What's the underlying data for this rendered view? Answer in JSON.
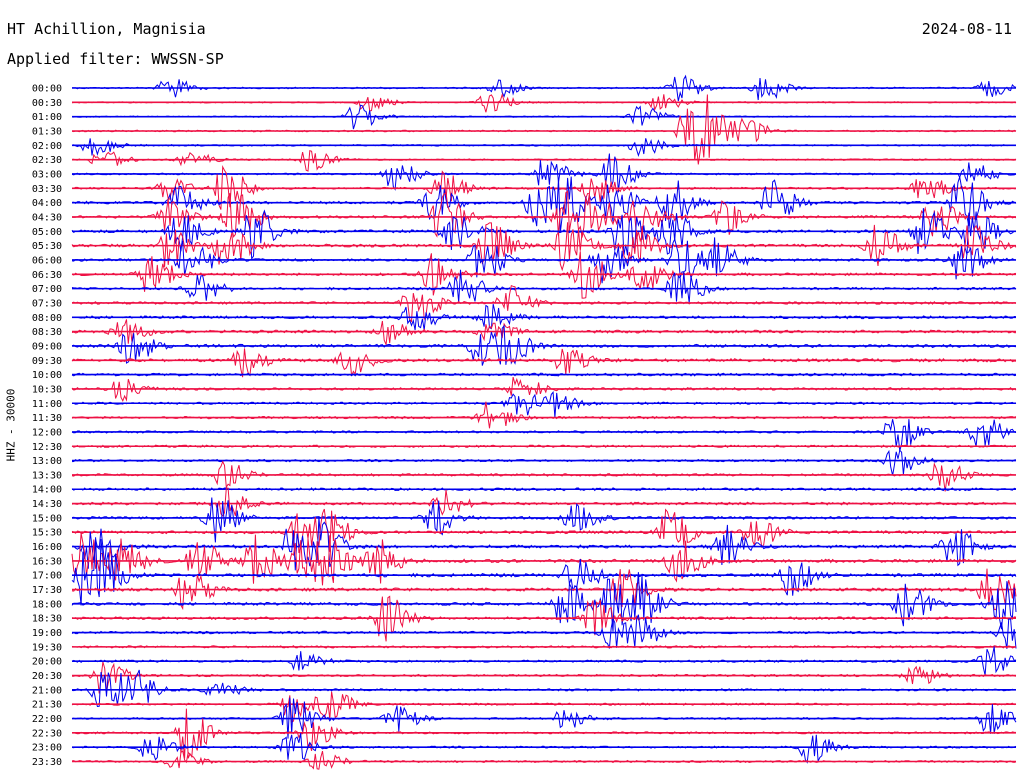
{
  "header": {
    "station": "HT Achillion, Magnisia",
    "date": "2024-08-11",
    "filter": "Applied filter: WWSSN-SP"
  },
  "chart_data": {
    "type": "line",
    "title": "HT Achillion, Magnisia",
    "date": "2024-08-11",
    "filter": "Applied filter: WWSSN-SP",
    "ylabel": "HHZ - 30000",
    "row_labels": [
      "00:00",
      "00:30",
      "01:00",
      "01:30",
      "02:00",
      "02:30",
      "03:00",
      "03:30",
      "04:00",
      "04:30",
      "05:00",
      "05:30",
      "06:00",
      "06:30",
      "07:00",
      "07:30",
      "08:00",
      "08:30",
      "09:00",
      "09:30",
      "10:00",
      "10:30",
      "11:00",
      "11:30",
      "12:00",
      "12:30",
      "13:00",
      "13:30",
      "14:00",
      "14:30",
      "15:00",
      "15:30",
      "16:00",
      "16:30",
      "17:00",
      "17:30",
      "18:00",
      "18:30",
      "19:00",
      "19:30",
      "20:00",
      "20:30",
      "21:00",
      "21:30",
      "22:00",
      "22:30",
      "23:00",
      "23:30"
    ],
    "row_minutes": 30,
    "trace_colors": [
      "#0000ee",
      "#ee1144"
    ],
    "baseline_noise": [
      0.35,
      0.3,
      0.3,
      0.35,
      0.35,
      0.35,
      0.4,
      0.45,
      0.6,
      0.6,
      0.65,
      0.65,
      0.6,
      0.6,
      0.55,
      0.55,
      0.6,
      0.65,
      0.7,
      0.7,
      0.6,
      0.55,
      0.5,
      0.5,
      0.5,
      0.5,
      0.5,
      0.55,
      0.6,
      0.6,
      0.6,
      0.65,
      0.7,
      0.75,
      0.75,
      0.7,
      0.65,
      0.6,
      0.55,
      0.5,
      0.5,
      0.5,
      0.5,
      0.45,
      0.45,
      0.45,
      0.45,
      0.45
    ],
    "events": [
      {
        "row": 0,
        "x": [
          0.1,
          0.45,
          0.64,
          0.73,
          0.97
        ],
        "amp": [
          1.0,
          0.8,
          1.2,
          1.2,
          0.8
        ]
      },
      {
        "row": 1,
        "x": [
          0.31,
          0.44,
          0.62
        ],
        "amp": [
          0.8,
          1.0,
          0.8
        ]
      },
      {
        "row": 2,
        "x": [
          0.3,
          0.6
        ],
        "amp": [
          1.2,
          1.0
        ]
      },
      {
        "row": 3,
        "x": [
          0.65,
          0.67,
          0.71
        ],
        "amp": [
          2.5,
          2.2,
          1.2
        ]
      },
      {
        "row": 4,
        "x": [
          0.02,
          0.6
        ],
        "amp": [
          1.0,
          1.0
        ]
      },
      {
        "row": 5,
        "x": [
          0.03,
          0.12,
          0.25
        ],
        "amp": [
          0.9,
          0.9,
          1.0
        ]
      },
      {
        "row": 6,
        "x": [
          0.34,
          0.5,
          0.57,
          0.95
        ],
        "amp": [
          1.5,
          1.6,
          1.8,
          1.3
        ]
      },
      {
        "row": 7,
        "x": [
          0.1,
          0.16,
          0.39,
          0.55,
          0.9
        ],
        "amp": [
          1.0,
          2.2,
          1.8,
          1.4,
          1.5
        ]
      },
      {
        "row": 8,
        "x": [
          0.11,
          0.38,
          0.49,
          0.52,
          0.57,
          0.63,
          0.74,
          0.94
        ],
        "amp": [
          1.5,
          1.8,
          2.2,
          2.5,
          2.0,
          2.5,
          2.0,
          2.5
        ]
      },
      {
        "row": 9,
        "x": [
          0.1,
          0.17,
          0.39,
          0.52,
          0.55,
          0.6,
          0.69,
          0.91
        ],
        "amp": [
          1.6,
          2.4,
          2.2,
          2.4,
          2.0,
          2.2,
          1.6,
          1.8
        ]
      },
      {
        "row": 10,
        "x": [
          0.11,
          0.19,
          0.4,
          0.58,
          0.63,
          0.9,
          0.95
        ],
        "amp": [
          1.8,
          2.4,
          2.0,
          2.5,
          2.0,
          2.4,
          2.4
        ]
      },
      {
        "row": 11,
        "x": [
          0.1,
          0.16,
          0.44,
          0.52,
          0.59,
          0.85,
          0.95
        ],
        "amp": [
          2.0,
          2.4,
          2.2,
          2.2,
          2.4,
          2.0,
          2.0
        ]
      },
      {
        "row": 12,
        "x": [
          0.12,
          0.43,
          0.56,
          0.64,
          0.68,
          0.94
        ],
        "amp": [
          2.2,
          2.2,
          2.0,
          2.2,
          2.0,
          2.0
        ]
      },
      {
        "row": 13,
        "x": [
          0.08,
          0.38,
          0.54,
          0.6
        ],
        "amp": [
          2.0,
          2.0,
          2.2,
          1.8
        ]
      },
      {
        "row": 14,
        "x": [
          0.13,
          0.41,
          0.64
        ],
        "amp": [
          1.6,
          1.8,
          1.8
        ]
      },
      {
        "row": 15,
        "x": [
          0.36,
          0.46
        ],
        "amp": [
          2.2,
          1.6
        ]
      },
      {
        "row": 16,
        "x": [
          0.36,
          0.44
        ],
        "amp": [
          1.4,
          1.2
        ]
      },
      {
        "row": 17,
        "x": [
          0.05,
          0.33,
          0.44
        ],
        "amp": [
          1.2,
          1.2,
          1.0
        ]
      },
      {
        "row": 18,
        "x": [
          0.06,
          0.43,
          0.46
        ],
        "amp": [
          1.6,
          1.8,
          1.6
        ]
      },
      {
        "row": 19,
        "x": [
          0.18,
          0.29,
          0.52
        ],
        "amp": [
          1.4,
          1.4,
          1.2
        ]
      },
      {
        "row": 21,
        "x": [
          0.05,
          0.47
        ],
        "amp": [
          1.0,
          1.2
        ]
      },
      {
        "row": 22,
        "x": [
          0.47,
          0.51
        ],
        "amp": [
          1.4,
          1.2
        ]
      },
      {
        "row": 23,
        "x": [
          0.44
        ],
        "amp": [
          1.4
        ]
      },
      {
        "row": 24,
        "x": [
          0.87,
          0.96
        ],
        "amp": [
          1.8,
          1.6
        ]
      },
      {
        "row": 26,
        "x": [
          0.87
        ],
        "amp": [
          1.4
        ]
      },
      {
        "row": 27,
        "x": [
          0.16,
          0.92
        ],
        "amp": [
          1.2,
          1.8
        ]
      },
      {
        "row": 29,
        "x": [
          0.16,
          0.39
        ],
        "amp": [
          1.6,
          1.2
        ]
      },
      {
        "row": 30,
        "x": [
          0.15,
          0.38,
          0.53
        ],
        "amp": [
          2.2,
          1.8,
          1.4
        ]
      },
      {
        "row": 31,
        "x": [
          0.24,
          0.27,
          0.63,
          0.72
        ],
        "amp": [
          2.0,
          1.6,
          2.0,
          1.6
        ]
      },
      {
        "row": 32,
        "x": [
          0.02,
          0.23,
          0.26,
          0.69,
          0.93
        ],
        "amp": [
          2.2,
          2.2,
          2.2,
          2.0,
          2.0
        ]
      },
      {
        "row": 33,
        "x": [
          0.01,
          0.05,
          0.13,
          0.19,
          0.24,
          0.27,
          0.32,
          0.64
        ],
        "amp": [
          2.4,
          2.0,
          2.2,
          2.4,
          2.4,
          2.6,
          2.2,
          2.0
        ]
      },
      {
        "row": 34,
        "x": [
          0.01,
          0.03,
          0.53,
          0.76
        ],
        "amp": [
          2.6,
          2.2,
          1.8,
          1.8
        ]
      },
      {
        "row": 35,
        "x": [
          0.12,
          0.58,
          0.97
        ],
        "amp": [
          1.8,
          2.0,
          2.0
        ]
      },
      {
        "row": 36,
        "x": [
          0.52,
          0.57,
          0.6,
          0.88,
          0.98
        ],
        "amp": [
          2.2,
          2.4,
          2.2,
          2.0,
          2.4
        ]
      },
      {
        "row": 37,
        "x": [
          0.33,
          0.55
        ],
        "amp": [
          2.2,
          1.8
        ]
      },
      {
        "row": 38,
        "x": [
          0.57,
          0.6,
          0.99
        ],
        "amp": [
          1.4,
          1.4,
          1.6
        ]
      },
      {
        "row": 40,
        "x": [
          0.24,
          0.97
        ],
        "amp": [
          1.0,
          1.4
        ]
      },
      {
        "row": 41,
        "x": [
          0.03,
          0.89
        ],
        "amp": [
          1.6,
          1.0
        ]
      },
      {
        "row": 42,
        "x": [
          0.03,
          0.06,
          0.15
        ],
        "amp": [
          2.4,
          2.0,
          1.0
        ]
      },
      {
        "row": 43,
        "x": [
          0.23,
          0.27
        ],
        "amp": [
          1.6,
          1.4
        ]
      },
      {
        "row": 44,
        "x": [
          0.23,
          0.34,
          0.52,
          0.97
        ],
        "amp": [
          2.2,
          1.2,
          1.0,
          1.4
        ]
      },
      {
        "row": 45,
        "x": [
          0.12,
          0.25
        ],
        "amp": [
          2.4,
          1.6
        ]
      },
      {
        "row": 46,
        "x": [
          0.08,
          0.23,
          0.78
        ],
        "amp": [
          1.2,
          1.6,
          1.4
        ]
      },
      {
        "row": 47,
        "x": [
          0.11,
          0.26
        ],
        "amp": [
          1.0,
          0.9
        ]
      }
    ]
  }
}
